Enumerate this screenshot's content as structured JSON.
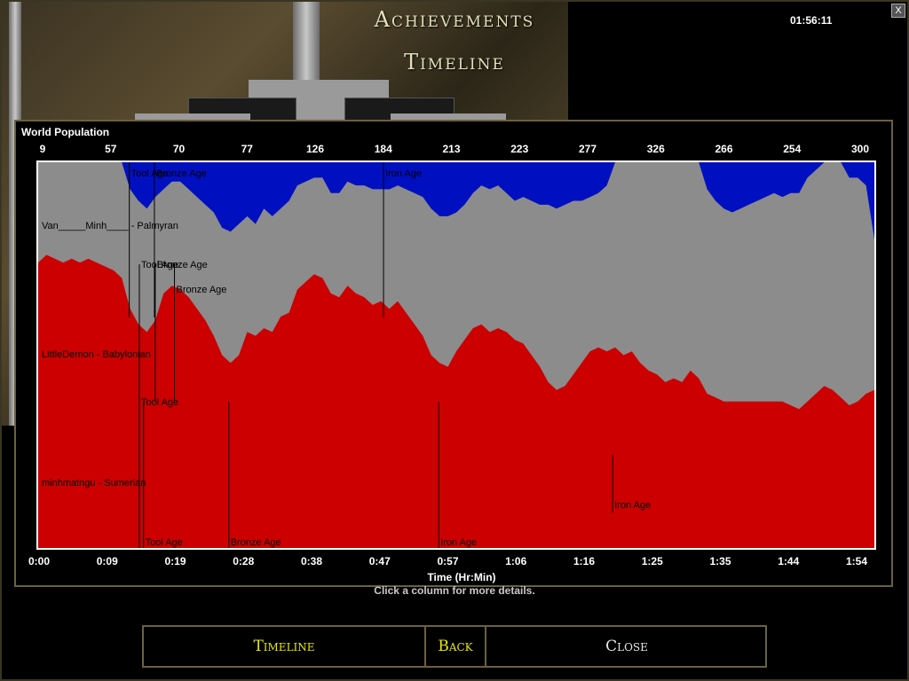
{
  "header": {
    "title": "Achievements",
    "subtitle": "Timeline",
    "clock": "01:56:11",
    "close_label": "X"
  },
  "chart_data": {
    "type": "area",
    "title": "World Population",
    "xlabel": "Time (Hr:Min)",
    "top_labels": [
      "9",
      "57",
      "70",
      "77",
      "126",
      "184",
      "213",
      "223",
      "277",
      "326",
      "266",
      "254",
      "300"
    ],
    "x_ticks": [
      "0:00",
      "0:09",
      "0:19",
      "0:28",
      "0:38",
      "0:47",
      "0:57",
      "1:06",
      "1:16",
      "1:25",
      "1:35",
      "1:44",
      "1:54"
    ],
    "series": [
      {
        "name": "minhmatngu - Sumerian",
        "color": "#cc0000",
        "label": "minhmatngu - Sumerian",
        "population_pct": [
          [
            0,
            36
          ],
          [
            1,
            38
          ],
          [
            2,
            37
          ],
          [
            3,
            36
          ],
          [
            4,
            37
          ],
          [
            5,
            36
          ],
          [
            6,
            37
          ],
          [
            7,
            36
          ],
          [
            8,
            35
          ],
          [
            9,
            34
          ],
          [
            10,
            32
          ],
          [
            11,
            24
          ],
          [
            12,
            20
          ],
          [
            13,
            18
          ],
          [
            14,
            21
          ],
          [
            15,
            28
          ],
          [
            16,
            30
          ],
          [
            17,
            29
          ],
          [
            18,
            27
          ],
          [
            19,
            24
          ],
          [
            20,
            21
          ],
          [
            21,
            17
          ],
          [
            22,
            12
          ],
          [
            23,
            10
          ],
          [
            24,
            12
          ],
          [
            25,
            18
          ],
          [
            26,
            17
          ],
          [
            27,
            19
          ],
          [
            28,
            18
          ],
          [
            29,
            22
          ],
          [
            30,
            23
          ],
          [
            31,
            29
          ],
          [
            32,
            31
          ],
          [
            33,
            33
          ],
          [
            34,
            32
          ],
          [
            35,
            28
          ],
          [
            36,
            27
          ],
          [
            37,
            30
          ],
          [
            38,
            28
          ],
          [
            39,
            27
          ],
          [
            40,
            25
          ],
          [
            41,
            26
          ],
          [
            42,
            24
          ],
          [
            43,
            26
          ],
          [
            44,
            23
          ],
          [
            45,
            20
          ],
          [
            46,
            17
          ],
          [
            47,
            12
          ],
          [
            48,
            10
          ],
          [
            49,
            9
          ],
          [
            50,
            13
          ],
          [
            51,
            16
          ],
          [
            52,
            19
          ],
          [
            53,
            20
          ],
          [
            54,
            18
          ],
          [
            55,
            19
          ],
          [
            56,
            18
          ],
          [
            57,
            16
          ],
          [
            58,
            15
          ],
          [
            59,
            12
          ],
          [
            60,
            9
          ],
          [
            61,
            5
          ],
          [
            62,
            3
          ],
          [
            63,
            4
          ],
          [
            64,
            7
          ],
          [
            65,
            10
          ],
          [
            66,
            13
          ],
          [
            67,
            14
          ],
          [
            68,
            13
          ],
          [
            69,
            14
          ],
          [
            70,
            12
          ],
          [
            71,
            13
          ],
          [
            72,
            10
          ],
          [
            73,
            8
          ],
          [
            74,
            7
          ],
          [
            75,
            5
          ],
          [
            76,
            6
          ],
          [
            77,
            5
          ],
          [
            78,
            8
          ],
          [
            79,
            6
          ],
          [
            80,
            2
          ],
          [
            81,
            1
          ],
          [
            82,
            0
          ],
          [
            83,
            0
          ],
          [
            84,
            0
          ],
          [
            85,
            0
          ],
          [
            86,
            0
          ],
          [
            87,
            0
          ],
          [
            88,
            0
          ],
          [
            89,
            0
          ],
          [
            90,
            -1
          ],
          [
            91,
            -2
          ],
          [
            92,
            0
          ],
          [
            93,
            2
          ],
          [
            94,
            4
          ],
          [
            95,
            3
          ],
          [
            96,
            1
          ],
          [
            97,
            -1
          ],
          [
            98,
            0
          ],
          [
            99,
            2
          ],
          [
            100,
            3
          ]
        ]
      },
      {
        "name": "LittleDemon - Babylonian",
        "color": "#8c8c8c",
        "label": "LittleDemon - Babylonian",
        "population_pct": [
          [
            0,
            9
          ],
          [
            1,
            10
          ],
          [
            2,
            11
          ],
          [
            3,
            11
          ],
          [
            4,
            10
          ],
          [
            5,
            11
          ],
          [
            6,
            11
          ],
          [
            7,
            11
          ],
          [
            8,
            11
          ],
          [
            9,
            10
          ],
          [
            10,
            10
          ],
          [
            11,
            11
          ],
          [
            12,
            12
          ],
          [
            13,
            12
          ],
          [
            14,
            12
          ],
          [
            15,
            7
          ],
          [
            16,
            7
          ],
          [
            17,
            8
          ],
          [
            18,
            8
          ],
          [
            19,
            9
          ],
          [
            20,
            10
          ],
          [
            21,
            12
          ],
          [
            22,
            13
          ],
          [
            23,
            14
          ],
          [
            24,
            14
          ],
          [
            25,
            10
          ],
          [
            26,
            9
          ],
          [
            27,
            11
          ],
          [
            28,
            10
          ],
          [
            29,
            8
          ],
          [
            30,
            9
          ],
          [
            31,
            7
          ],
          [
            32,
            6
          ],
          [
            33,
            5
          ],
          [
            34,
            6
          ],
          [
            35,
            6
          ],
          [
            36,
            7
          ],
          [
            37,
            7
          ],
          [
            38,
            8
          ],
          [
            39,
            9
          ],
          [
            40,
            10
          ],
          [
            41,
            9
          ],
          [
            42,
            11
          ],
          [
            43,
            10
          ],
          [
            44,
            12
          ],
          [
            45,
            14
          ],
          [
            46,
            16
          ],
          [
            47,
            18
          ],
          [
            48,
            18
          ],
          [
            49,
            19
          ],
          [
            50,
            16
          ],
          [
            51,
            15
          ],
          [
            52,
            15
          ],
          [
            53,
            16
          ],
          [
            54,
            17
          ],
          [
            55,
            17
          ],
          [
            56,
            16
          ],
          [
            57,
            16
          ],
          [
            58,
            18
          ],
          [
            59,
            20
          ],
          [
            60,
            22
          ],
          [
            61,
            26
          ],
          [
            62,
            27
          ],
          [
            63,
            27
          ],
          [
            64,
            25
          ],
          [
            65,
            22
          ],
          [
            66,
            20
          ],
          [
            67,
            20
          ],
          [
            68,
            23
          ],
          [
            69,
            28
          ],
          [
            70,
            34
          ],
          [
            71,
            39
          ],
          [
            72,
            42
          ],
          [
            73,
            45
          ],
          [
            74,
            46
          ],
          [
            75,
            47
          ],
          [
            76,
            46
          ],
          [
            77,
            44
          ],
          [
            78,
            40
          ],
          [
            79,
            37
          ],
          [
            80,
            33
          ],
          [
            81,
            31
          ],
          [
            82,
            30
          ],
          [
            83,
            29
          ],
          [
            84,
            30
          ],
          [
            85,
            31
          ],
          [
            86,
            32
          ],
          [
            87,
            33
          ],
          [
            88,
            34
          ],
          [
            89,
            33
          ],
          [
            90,
            35
          ],
          [
            91,
            36
          ],
          [
            92,
            38
          ],
          [
            93,
            38
          ],
          [
            94,
            39
          ],
          [
            95,
            40
          ],
          [
            96,
            41
          ],
          [
            97,
            39
          ],
          [
            98,
            38
          ],
          [
            99,
            34
          ],
          [
            100,
            19
          ]
        ]
      },
      {
        "name": "Van_____Minh____ - Palmyran",
        "color": "#0010c0",
        "label": "Van_____Minh____ - Palmyran"
      }
    ],
    "age_markers": [
      {
        "x": 10.9,
        "label": "Tool Age",
        "row": "Van"
      },
      {
        "x": 13.9,
        "label": "Bronze Age",
        "row": "Van"
      },
      {
        "x": 14.0,
        "label": "Bronze Age",
        "row": "Little"
      },
      {
        "x": 41.3,
        "label": "Iron Age",
        "row": "Van"
      },
      {
        "x": 12.1,
        "label": "Tool Age",
        "row": "Little"
      },
      {
        "x": 16.3,
        "label": "Bronze Age",
        "row": "Little2"
      },
      {
        "x": 12.1,
        "label": "Tool Age",
        "row": "Minh1"
      },
      {
        "x": 12.6,
        "label": "Tool Age",
        "row": "Minh"
      },
      {
        "x": 22.8,
        "label": "Bronze Age",
        "row": "Minh"
      },
      {
        "x": 47.9,
        "label": "Iron Age",
        "row": "Minh"
      },
      {
        "x": 68.7,
        "label": "Iron Age",
        "row": "Little3"
      }
    ]
  },
  "hint": "Click a column for more details.",
  "buttons": {
    "timeline": "Timeline",
    "back": "Back",
    "close": "Close"
  }
}
